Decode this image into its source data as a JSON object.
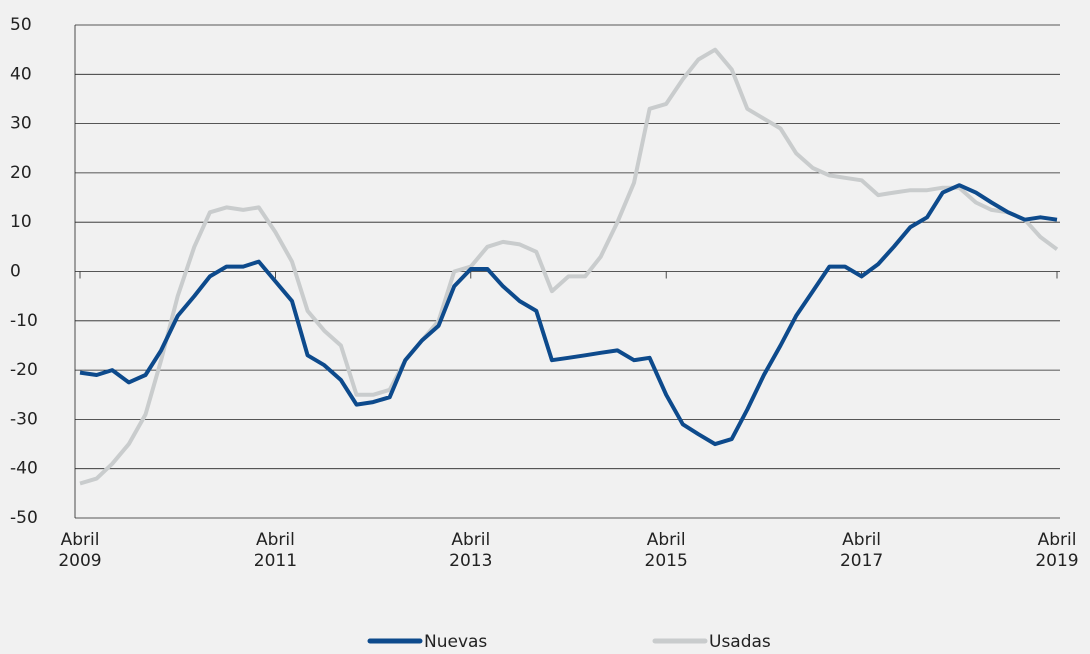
{
  "chart_data": {
    "type": "line",
    "x": [
      2009.25,
      2009.42,
      2009.58,
      2009.75,
      2009.92,
      2010.08,
      2010.25,
      2010.42,
      2010.58,
      2010.75,
      2010.92,
      2011.08,
      2011.25,
      2011.42,
      2011.58,
      2011.75,
      2011.92,
      2012.08,
      2012.25,
      2012.42,
      2012.58,
      2012.75,
      2012.92,
      2013.08,
      2013.25,
      2013.42,
      2013.58,
      2013.75,
      2013.92,
      2014.08,
      2014.25,
      2014.42,
      2014.58,
      2014.75,
      2014.92,
      2015.08,
      2015.25,
      2015.42,
      2015.58,
      2015.75,
      2015.92,
      2016.08,
      2016.25,
      2016.42,
      2016.58,
      2016.75,
      2016.92,
      2017.08,
      2017.25,
      2017.42,
      2017.58,
      2017.75,
      2017.92,
      2018.08,
      2018.25,
      2018.42,
      2018.58,
      2018.75,
      2018.92,
      2019.08,
      2019.25
    ],
    "series": [
      {
        "name": "Nuevas",
        "color": "#0d4a8c",
        "values": [
          -20.5,
          -21,
          -20,
          -22.5,
          -21,
          -16,
          -9,
          -5,
          -1,
          1,
          1,
          2,
          -2,
          -6,
          -17,
          -19,
          -22,
          -27,
          -26.5,
          -25.5,
          -18,
          -14,
          -11,
          -3,
          0.5,
          0.5,
          -3,
          -6,
          -8,
          -18,
          -17.5,
          -17,
          -16.5,
          -16,
          -18,
          -17.5,
          -25,
          -31,
          -33,
          -35,
          -34,
          -28,
          -21,
          -15,
          -9,
          -4,
          1,
          1,
          -1,
          1.5,
          5,
          9,
          11,
          16,
          17.5,
          16,
          14,
          12,
          10.5,
          11,
          10.5
        ]
      },
      {
        "name": "Usadas",
        "color": "#c9cccd",
        "values": [
          -43,
          -42,
          -39,
          -35,
          -29,
          -18,
          -5,
          5,
          12,
          13,
          12.5,
          13,
          8,
          2,
          -8,
          -12,
          -15,
          -25,
          -25,
          -24,
          -18,
          -14,
          -10,
          0,
          1,
          5,
          6,
          5.5,
          4,
          -4,
          -1,
          -1,
          3,
          10,
          18,
          33,
          34,
          39,
          43,
          45,
          41,
          33,
          31,
          29,
          24,
          21,
          19.5,
          19,
          18.5,
          15.5,
          16,
          16.5,
          16.5,
          17,
          17,
          14,
          12.5,
          12,
          10.5,
          7,
          4.5
        ]
      }
    ],
    "xlim": [
      2009.25,
      2019.25
    ],
    "xticks": [
      {
        "value": 2009.25,
        "label": "Abril 2009"
      },
      {
        "value": 2011.25,
        "label": "Abril 2011"
      },
      {
        "value": 2013.25,
        "label": "Abril 2013"
      },
      {
        "value": 2015.25,
        "label": "Abril 2015"
      },
      {
        "value": 2017.25,
        "label": "Abril 2017"
      },
      {
        "value": 2019.25,
        "label": "Abril 2019"
      }
    ],
    "ylim": [
      -50,
      50
    ],
    "yticks": [
      -50,
      -40,
      -30,
      -20,
      -10,
      0,
      10,
      20,
      30,
      40,
      50
    ],
    "grid": true
  }
}
